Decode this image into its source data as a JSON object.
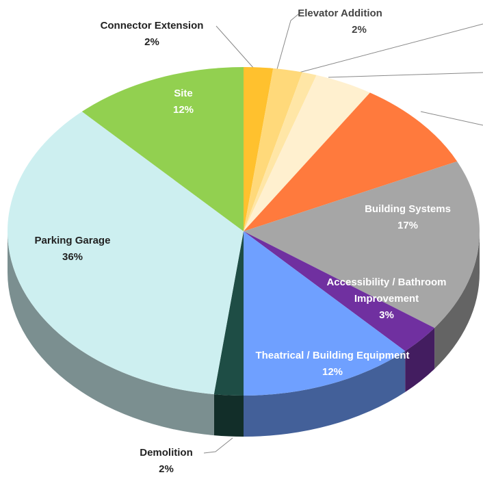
{
  "chart_data": {
    "type": "pie",
    "categories": [
      "Connector Extension",
      "Elevator Addition",
      null,
      null,
      null,
      "Building Systems",
      "Accessibility / Bathroom Improvement",
      "Theatrical / Building Equipment",
      "Demolition",
      "Parking Garage",
      "Site"
    ],
    "values": [
      2,
      2,
      1,
      4,
      9,
      17,
      3,
      12,
      2,
      36,
      12
    ],
    "value_labels": [
      "2%",
      "2%",
      null,
      null,
      null,
      "17%",
      "3%",
      "12%",
      "2%",
      "36%",
      "12%"
    ],
    "colors": [
      "#ffc12e",
      "#ffd97a",
      "#ffe6a6",
      "#fff0cf",
      "#ff7a3d",
      "#a6a6a6",
      "#7030a0",
      "#6fa0ff",
      "#1e4d45",
      "#cdeff0",
      "#92d050"
    ]
  }
}
